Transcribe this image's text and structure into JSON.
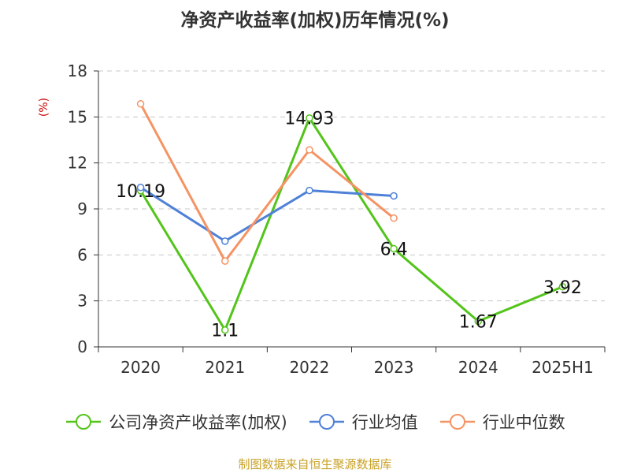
{
  "chart_data": {
    "type": "line",
    "title": "净资产收益率(加权)历年情况(%)",
    "ylabel": "(%)",
    "categories": [
      "2020",
      "2021",
      "2022",
      "2023",
      "2024",
      "2025H1"
    ],
    "yticks": [
      "0",
      "3",
      "6",
      "9",
      "12",
      "15",
      "18"
    ],
    "ylim": [
      0,
      18
    ],
    "grid": "horizontal-dashed",
    "legend": "bottom",
    "series": [
      {
        "name": "公司净资产收益率(加权)",
        "color": "#52c41a",
        "values": [
          10.19,
          1.1,
          14.93,
          6.4,
          1.67,
          3.92
        ],
        "labels": [
          "10.19",
          "1.1",
          "14.93",
          "6.4",
          "1.67",
          "3.92"
        ]
      },
      {
        "name": "行业均值",
        "color": "#4f81d8",
        "values": [
          10.4,
          6.9,
          10.2,
          9.85,
          null,
          null
        ]
      },
      {
        "name": "行业中位数",
        "color": "#f59363",
        "values": [
          15.85,
          5.6,
          12.85,
          8.4,
          null,
          null
        ]
      }
    ]
  },
  "footer": {
    "source": "制图数据来自恒生聚源数据库"
  }
}
